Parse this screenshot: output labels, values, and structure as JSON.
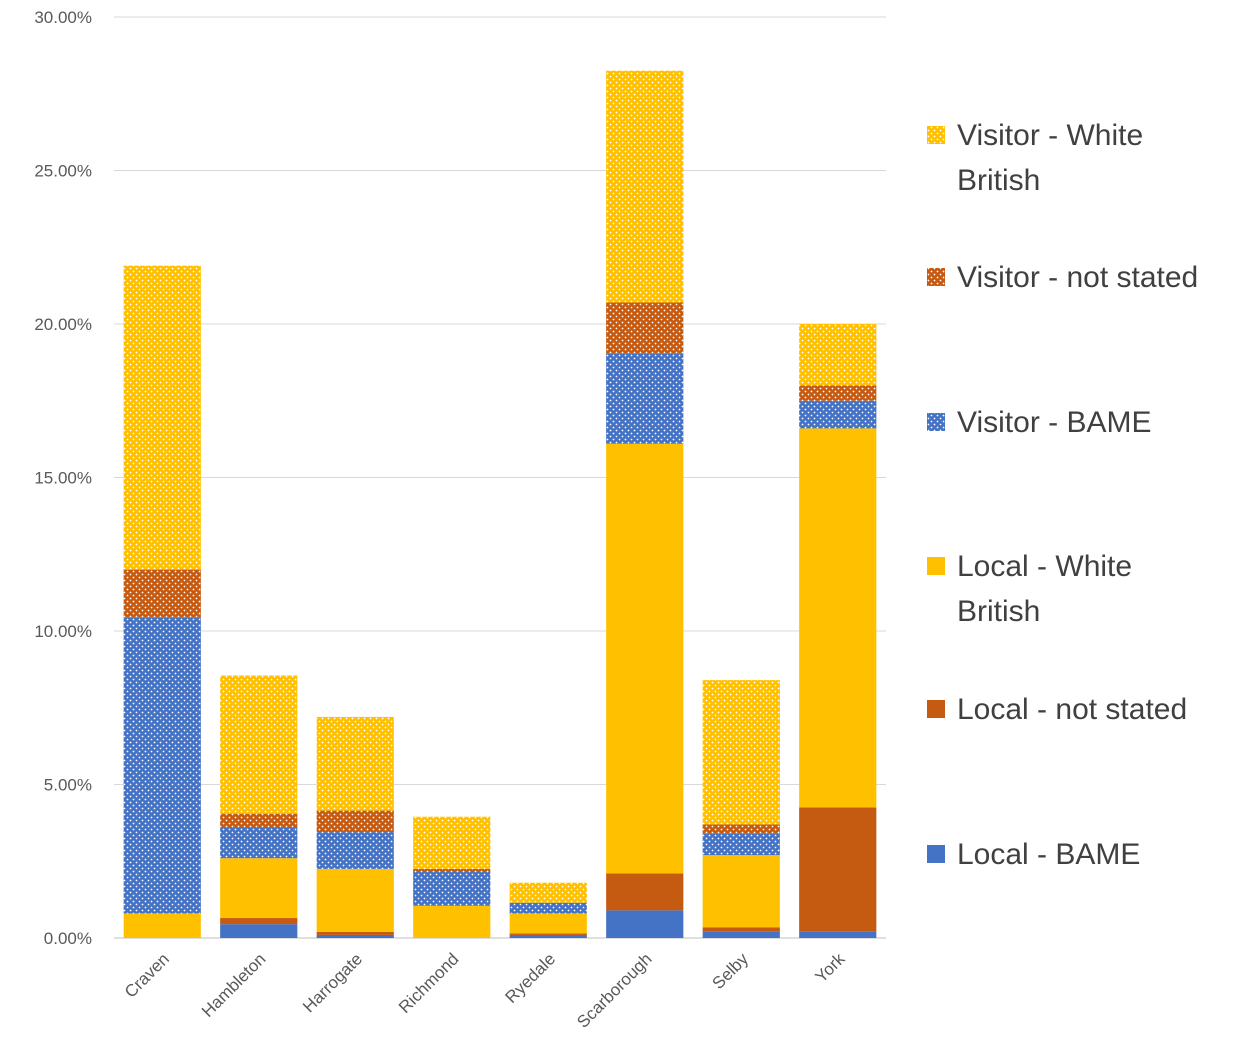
{
  "chart_data": {
    "type": "bar",
    "stacked": true,
    "categories": [
      "Craven",
      "Hambleton",
      "Harrogate",
      "Richmond",
      "Ryedale",
      "Scarborough",
      "Selby",
      "York"
    ],
    "ylim": [
      0,
      30
    ],
    "yticks": [
      "0.00%",
      "5.00%",
      "10.00%",
      "15.00%",
      "20.00%",
      "25.00%",
      "30.00%"
    ],
    "ytick_values": [
      0,
      5,
      10,
      15,
      20,
      25,
      30
    ],
    "grid": true,
    "legend_position": "right",
    "series": [
      {
        "name": "Local - BAME",
        "color": "#4472c4",
        "pattern": "solid",
        "values": [
          0.0,
          0.45,
          0.1,
          0.0,
          0.1,
          0.9,
          0.2,
          0.2
        ]
      },
      {
        "name": "Local - not stated",
        "color": "#c55a11",
        "pattern": "solid",
        "values": [
          0.0,
          0.2,
          0.1,
          0.0,
          0.05,
          1.2,
          0.15,
          4.05
        ]
      },
      {
        "name": "Local - White British",
        "color": "#ffc000",
        "pattern": "solid",
        "values": [
          0.8,
          1.95,
          2.05,
          1.05,
          0.65,
          14.0,
          2.35,
          12.35
        ]
      },
      {
        "name": "Visitor - BAME",
        "color": "#4472c4",
        "pattern": "dots",
        "values": [
          9.65,
          1.0,
          1.2,
          1.1,
          0.35,
          2.95,
          0.7,
          0.9
        ]
      },
      {
        "name": "Visitor - not stated",
        "color": "#c55a11",
        "pattern": "dots",
        "values": [
          1.55,
          0.45,
          0.7,
          0.1,
          0.0,
          1.65,
          0.3,
          0.5
        ]
      },
      {
        "name": "Visitor - White British",
        "color": "#ffc000",
        "pattern": "dots",
        "values": [
          9.9,
          4.5,
          3.05,
          1.7,
          0.65,
          7.55,
          4.7,
          2.0
        ]
      }
    ],
    "legend_order": [
      {
        "series_index": 5,
        "lines": [
          "Visitor - White",
          "British"
        ]
      },
      {
        "series_index": 4,
        "lines": [
          "Visitor - not stated"
        ]
      },
      {
        "series_index": 3,
        "lines": [
          "Visitor - BAME"
        ]
      },
      {
        "series_index": 2,
        "lines": [
          "Local - White",
          "British"
        ]
      },
      {
        "series_index": 1,
        "lines": [
          "Local - not stated"
        ]
      },
      {
        "series_index": 0,
        "lines": [
          "Local - BAME"
        ]
      }
    ]
  }
}
